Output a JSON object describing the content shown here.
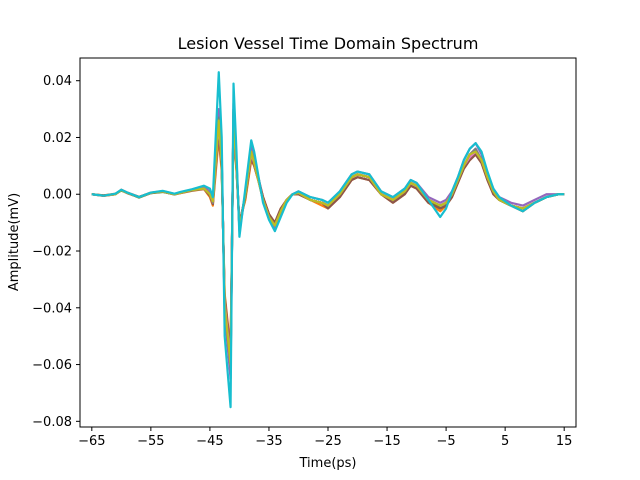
{
  "chart_data": {
    "type": "line",
    "title": "Lesion Vessel Time Domain Spectrum",
    "xlabel": "Time(ps)",
    "ylabel": "Amplitude(mV)",
    "xlim": [
      -67.0,
      17.0
    ],
    "ylim": [
      -0.082,
      0.048
    ],
    "xticks": [
      -65,
      -55,
      -45,
      -35,
      -25,
      -15,
      -5,
      5,
      15
    ],
    "xtick_labels": [
      "−65",
      "−55",
      "−45",
      "−35",
      "−25",
      "−15",
      "−5",
      "5",
      "15"
    ],
    "yticks": [
      -0.08,
      -0.06,
      -0.04,
      -0.02,
      0.0,
      0.02,
      0.04
    ],
    "ytick_labels": [
      "−0.08",
      "−0.06",
      "−0.04",
      "−0.02",
      "0.00",
      "0.02",
      "0.04"
    ],
    "grid": false,
    "legend": false,
    "series_colors": [
      "#1f77b4",
      "#ff7f0e",
      "#2ca02c",
      "#d62728",
      "#9467bd",
      "#8c564b",
      "#e377c2",
      "#7f7f7f",
      "#bcbd22",
      "#17becf"
    ],
    "x": [
      -65,
      -63,
      -61,
      -60,
      -59,
      -57,
      -55,
      -53,
      -51,
      -50,
      -48,
      -46,
      -45,
      -44.5,
      -43.5,
      -43,
      -42.5,
      -41.5,
      -41,
      -40.5,
      -40,
      -39,
      -38,
      -37.5,
      -36,
      -35,
      -34,
      -33,
      -32,
      -31,
      -30,
      -28,
      -26,
      -25,
      -23,
      -21,
      -20,
      -18,
      -16,
      -14,
      -12,
      -11,
      -10,
      -8,
      -6,
      -5,
      -4,
      -3,
      -2,
      -1,
      0,
      1,
      2,
      3,
      4,
      6,
      8,
      10,
      12,
      14,
      15
    ],
    "series": [
      {
        "values": [
          0.0,
          -0.0005,
          0.0,
          0.0015,
          0.0005,
          -0.001,
          0.0005,
          0.001,
          0.0,
          0.0005,
          0.0015,
          0.002,
          0.0,
          -0.003,
          0.028,
          0.012,
          -0.04,
          -0.062,
          0.03,
          0.01,
          -0.012,
          0.0,
          0.016,
          0.012,
          -0.002,
          -0.008,
          -0.011,
          -0.006,
          -0.002,
          0.0,
          0.0005,
          -0.002,
          -0.003,
          -0.004,
          0.0,
          0.006,
          0.007,
          0.006,
          0.0,
          -0.002,
          0.001,
          0.004,
          0.003,
          -0.002,
          -0.004,
          -0.003,
          0.0,
          0.005,
          0.01,
          0.014,
          0.016,
          0.012,
          0.006,
          0.001,
          -0.002,
          -0.004,
          -0.005,
          -0.003,
          -0.001,
          0.0,
          0.0
        ]
      },
      {
        "values": [
          0.0,
          -0.0004,
          0.0002,
          0.0014,
          0.0004,
          -0.001,
          0.0006,
          0.0009,
          0.0,
          0.0004,
          0.0012,
          0.0018,
          -0.001,
          -0.004,
          0.02,
          0.008,
          -0.035,
          -0.055,
          0.025,
          0.008,
          -0.01,
          -0.002,
          0.012,
          0.01,
          -0.001,
          -0.007,
          -0.01,
          -0.005,
          -0.002,
          0.0,
          0.0,
          -0.002,
          -0.004,
          -0.005,
          -0.001,
          0.005,
          0.006,
          0.005,
          0.0,
          -0.003,
          0.0,
          0.003,
          0.002,
          -0.003,
          -0.006,
          -0.004,
          -0.001,
          0.004,
          0.009,
          0.012,
          0.014,
          0.011,
          0.005,
          0.0,
          -0.002,
          -0.004,
          -0.006,
          -0.003,
          -0.001,
          0.0,
          0.0
        ]
      },
      {
        "values": [
          0.0,
          -0.0005,
          0.0001,
          0.0013,
          0.0005,
          -0.0012,
          0.0004,
          0.0008,
          0.0,
          0.0006,
          0.0014,
          0.0022,
          0.0005,
          -0.002,
          0.024,
          0.01,
          -0.038,
          -0.06,
          0.028,
          0.009,
          -0.011,
          -0.001,
          0.014,
          0.011,
          -0.002,
          -0.008,
          -0.01,
          -0.006,
          -0.002,
          0.0,
          0.0005,
          -0.002,
          -0.003,
          -0.004,
          0.0,
          0.006,
          0.007,
          0.006,
          0.0,
          -0.002,
          0.001,
          0.004,
          0.003,
          -0.002,
          -0.005,
          -0.004,
          0.0,
          0.005,
          0.01,
          0.013,
          0.015,
          0.012,
          0.006,
          0.001,
          -0.002,
          -0.004,
          -0.005,
          -0.003,
          -0.001,
          0.0,
          0.0
        ]
      },
      {
        "values": [
          0.0,
          -0.0006,
          0.0,
          0.0016,
          0.0006,
          -0.0009,
          0.0005,
          0.0011,
          0.0001,
          0.0005,
          0.0016,
          0.0021,
          0.0002,
          -0.003,
          0.026,
          0.011,
          -0.039,
          -0.058,
          0.029,
          0.01,
          -0.011,
          0.0,
          0.015,
          0.012,
          -0.001,
          -0.007,
          -0.011,
          -0.006,
          -0.002,
          0.0,
          0.0005,
          -0.002,
          -0.003,
          -0.004,
          0.0,
          0.006,
          0.007,
          0.006,
          0.0,
          -0.002,
          0.001,
          0.004,
          0.003,
          -0.002,
          -0.004,
          -0.003,
          0.0,
          0.005,
          0.01,
          0.014,
          0.015,
          0.012,
          0.006,
          0.001,
          -0.002,
          -0.004,
          -0.005,
          -0.003,
          -0.001,
          0.0,
          0.0
        ]
      },
      {
        "values": [
          0.0,
          -0.0005,
          0.0001,
          0.0015,
          0.0005,
          -0.001,
          0.0005,
          0.001,
          0.0,
          0.0005,
          0.0015,
          0.0025,
          0.001,
          -0.002,
          0.03,
          0.014,
          -0.042,
          -0.065,
          0.032,
          0.012,
          -0.013,
          0.0,
          0.017,
          0.013,
          -0.002,
          -0.008,
          -0.012,
          -0.007,
          -0.002,
          0.0,
          0.001,
          -0.001,
          -0.002,
          -0.003,
          0.001,
          0.007,
          0.008,
          0.007,
          0.001,
          -0.001,
          0.002,
          0.005,
          0.004,
          -0.001,
          -0.003,
          -0.002,
          0.001,
          0.006,
          0.012,
          0.016,
          0.018,
          0.014,
          0.007,
          0.002,
          -0.001,
          -0.003,
          -0.004,
          -0.002,
          0.0,
          0.0,
          0.0
        ]
      },
      {
        "values": [
          0.0,
          -0.0004,
          0.0,
          0.0014,
          0.0004,
          -0.0011,
          0.0004,
          0.0009,
          -0.0001,
          0.0004,
          0.0013,
          0.0019,
          -0.0005,
          -0.0035,
          0.022,
          0.009,
          -0.036,
          -0.056,
          0.027,
          0.009,
          -0.01,
          -0.001,
          0.013,
          0.01,
          -0.001,
          -0.007,
          -0.01,
          -0.005,
          -0.002,
          0.0,
          0.0,
          -0.002,
          -0.003,
          -0.005,
          -0.001,
          0.005,
          0.006,
          0.005,
          0.0,
          -0.003,
          0.0,
          0.003,
          0.002,
          -0.003,
          -0.005,
          -0.004,
          -0.001,
          0.004,
          0.009,
          0.012,
          0.014,
          0.011,
          0.005,
          0.0,
          -0.002,
          -0.004,
          -0.006,
          -0.003,
          -0.001,
          0.0,
          0.0
        ]
      },
      {
        "values": [
          0.0,
          -0.0005,
          0.0,
          0.0015,
          0.0005,
          -0.001,
          0.0005,
          0.001,
          0.0,
          0.0005,
          0.0015,
          0.002,
          0.0,
          -0.003,
          0.025,
          0.011,
          -0.038,
          -0.059,
          0.028,
          0.01,
          -0.012,
          0.0,
          0.014,
          0.011,
          -0.002,
          -0.008,
          -0.011,
          -0.006,
          -0.002,
          0.0,
          0.0005,
          -0.002,
          -0.003,
          -0.004,
          0.0,
          0.006,
          0.007,
          0.006,
          0.0,
          -0.002,
          0.001,
          0.004,
          0.003,
          -0.002,
          -0.004,
          -0.003,
          0.0,
          0.005,
          0.01,
          0.013,
          0.015,
          0.012,
          0.006,
          0.001,
          -0.002,
          -0.004,
          -0.005,
          -0.003,
          -0.001,
          0.0,
          0.0
        ]
      },
      {
        "values": [
          0.0,
          -0.0005,
          0.0001,
          0.0015,
          0.0005,
          -0.001,
          0.0005,
          0.001,
          0.0,
          0.0005,
          0.0014,
          0.002,
          0.0,
          -0.003,
          0.027,
          0.012,
          -0.04,
          -0.061,
          0.03,
          0.011,
          -0.012,
          0.0,
          0.015,
          0.012,
          -0.002,
          -0.008,
          -0.011,
          -0.006,
          -0.002,
          0.0,
          0.0005,
          -0.002,
          -0.003,
          -0.004,
          0.0,
          0.006,
          0.007,
          0.006,
          0.0,
          -0.002,
          0.001,
          0.004,
          0.003,
          -0.002,
          -0.004,
          -0.003,
          0.0,
          0.005,
          0.01,
          0.014,
          0.016,
          0.012,
          0.006,
          0.001,
          -0.002,
          -0.004,
          -0.005,
          -0.003,
          -0.001,
          0.0,
          0.0
        ]
      },
      {
        "values": [
          0.0,
          -0.0005,
          0.0,
          0.0014,
          0.0005,
          -0.001,
          0.0005,
          0.001,
          0.0,
          0.0005,
          0.0015,
          0.002,
          0.0,
          -0.0025,
          0.026,
          0.011,
          -0.039,
          -0.06,
          0.029,
          0.01,
          -0.012,
          0.0,
          0.015,
          0.011,
          -0.002,
          -0.008,
          -0.011,
          -0.006,
          -0.002,
          0.0,
          0.0005,
          -0.002,
          -0.003,
          -0.004,
          0.0,
          0.006,
          0.007,
          0.006,
          0.0,
          -0.002,
          0.001,
          0.004,
          0.003,
          -0.002,
          -0.004,
          -0.003,
          0.0,
          0.005,
          0.01,
          0.014,
          0.015,
          0.012,
          0.006,
          0.001,
          -0.002,
          -0.004,
          -0.005,
          -0.003,
          -0.001,
          0.0,
          0.0
        ]
      },
      {
        "values": [
          0.0,
          -0.0005,
          0.0002,
          0.0016,
          0.0006,
          -0.001,
          0.0006,
          0.0012,
          0.0002,
          0.0008,
          0.0018,
          0.003,
          0.002,
          -0.001,
          0.043,
          0.02,
          -0.05,
          -0.075,
          0.039,
          0.015,
          -0.015,
          0.002,
          0.019,
          0.015,
          -0.003,
          -0.009,
          -0.013,
          -0.008,
          -0.003,
          0.0,
          0.001,
          -0.001,
          -0.002,
          -0.003,
          0.001,
          0.007,
          0.008,
          0.007,
          0.001,
          -0.001,
          0.002,
          0.005,
          0.004,
          -0.002,
          -0.008,
          -0.005,
          0.001,
          0.006,
          0.012,
          0.016,
          0.018,
          0.015,
          0.008,
          0.002,
          -0.001,
          -0.004,
          -0.006,
          -0.003,
          -0.001,
          0.0,
          0.0
        ]
      }
    ]
  }
}
